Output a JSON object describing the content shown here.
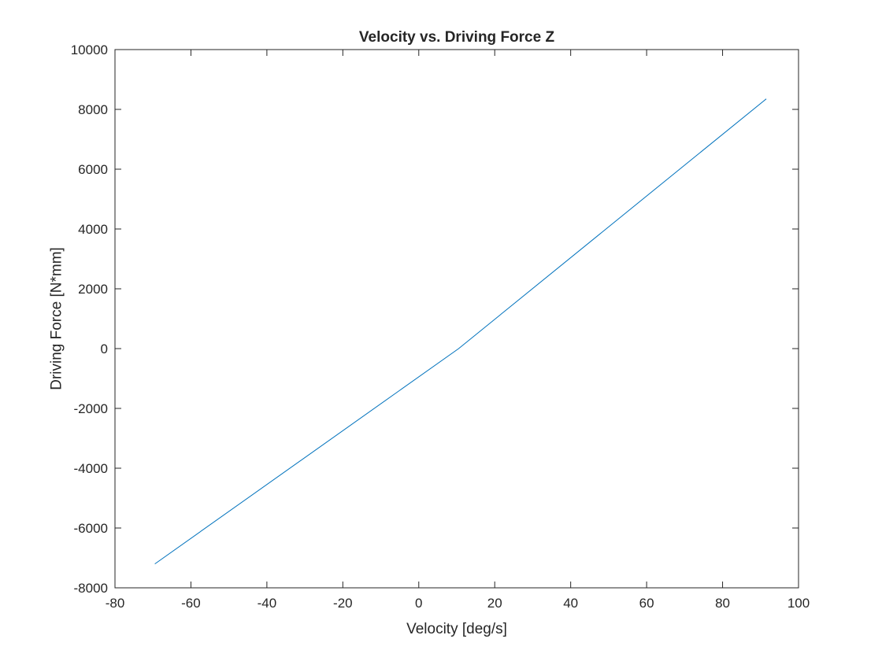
{
  "chart_data": {
    "type": "line",
    "title": "Velocity vs. Driving Force Z",
    "xlabel": "Velocity [deg/s]",
    "ylabel": "Driving Force [N*mm]",
    "xlim": [
      -80,
      100
    ],
    "ylim": [
      -8000,
      10000
    ],
    "xticks": [
      -80,
      -60,
      -40,
      -20,
      0,
      20,
      40,
      60,
      80,
      100
    ],
    "yticks": [
      -8000,
      -6000,
      -4000,
      -2000,
      0,
      2000,
      4000,
      6000,
      8000,
      10000
    ],
    "grid": false,
    "series": [
      {
        "color": "#0072BD",
        "x": [
          -69.5,
          10.5,
          91.5
        ],
        "y": [
          -7200,
          0,
          8350
        ]
      }
    ]
  }
}
